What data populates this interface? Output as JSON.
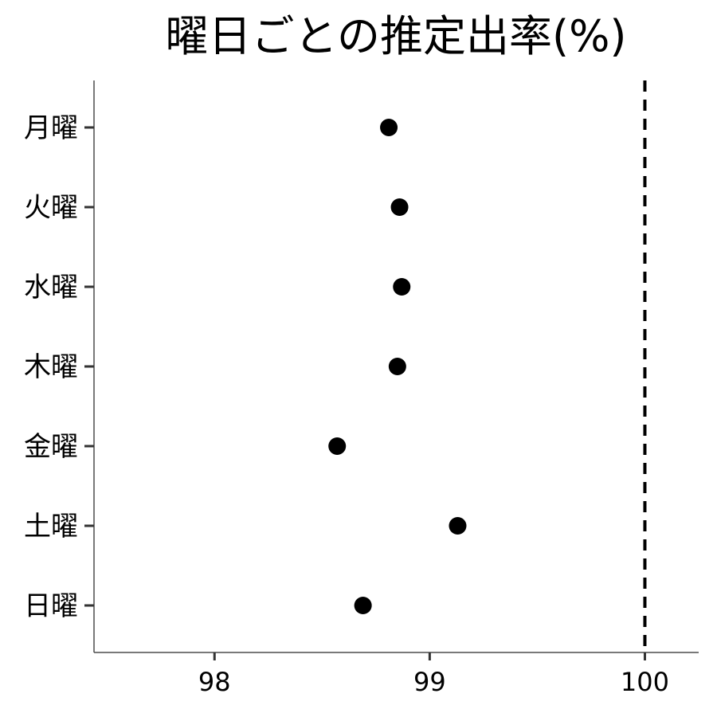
{
  "chart_data": {
    "type": "scatter",
    "title": "曜日ごとの推定出率(%)",
    "xlabel": "",
    "ylabel": "",
    "categories": [
      "月曜",
      "火曜",
      "水曜",
      "木曜",
      "金曜",
      "土曜",
      "日曜"
    ],
    "values": [
      98.81,
      98.86,
      98.87,
      98.85,
      98.57,
      99.13,
      98.69
    ],
    "xlim": [
      97.44,
      100.25
    ],
    "xticks": [
      98,
      99,
      100
    ],
    "xtick_labels": [
      "98",
      "99",
      "100"
    ],
    "reference_line": {
      "x": 100,
      "style": "dashed"
    },
    "grid": false,
    "point_color": "#000000"
  }
}
